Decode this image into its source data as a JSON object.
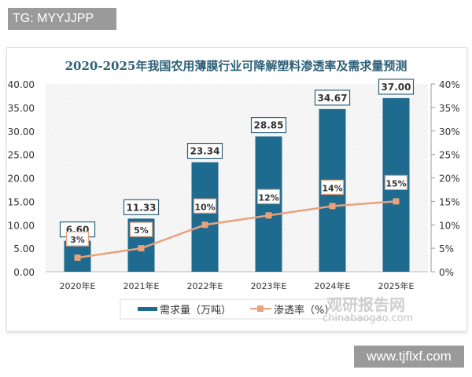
{
  "overlay_tag": "TG: MYYJJPP",
  "overlay_site": "www.tjflxf.com",
  "watermark": {
    "logo": "观研报告网",
    "sub": "chinabaogao.com"
  },
  "chart_data": {
    "type": "bar+line",
    "title": "2020-2025年我国农用薄膜行业可降解塑料渗透率及需求量预测",
    "categories": [
      "2020年E",
      "2021年E",
      "2022年E",
      "2023年E",
      "2024年E",
      "2025年E"
    ],
    "series": [
      {
        "name": "需求量（万吨）",
        "type": "bar",
        "axis": "left",
        "color": "#1f6a8f",
        "values": [
          6.6,
          11.33,
          23.34,
          28.85,
          34.67,
          37.0
        ],
        "labels": [
          "6.60",
          "11.33",
          "23.34",
          "28.85",
          "34.67",
          "37.00"
        ]
      },
      {
        "name": "渗透率（%）",
        "type": "line",
        "axis": "right",
        "color": "#e8a27c",
        "values": [
          3,
          5,
          10,
          12,
          14,
          15
        ],
        "labels": [
          "3%",
          "5%",
          "10%",
          "12%",
          "14%",
          "15%"
        ]
      }
    ],
    "left_axis": {
      "min": 0,
      "max": 40,
      "ticks": [
        "0.00",
        "5.00",
        "10.00",
        "15.00",
        "20.00",
        "25.00",
        "30.00",
        "35.00",
        "40.00"
      ]
    },
    "right_axis": {
      "min": 0,
      "max": 40,
      "ticks": [
        "0%",
        "5%",
        "10%",
        "15%",
        "20%",
        "25%",
        "30%",
        "35%",
        "40%"
      ]
    },
    "legend_position": "bottom"
  }
}
